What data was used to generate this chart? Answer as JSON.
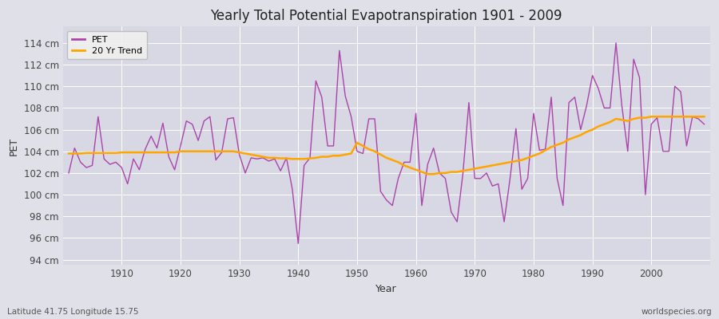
{
  "title": "Yearly Total Potential Evapotranspiration 1901 - 2009",
  "xlabel": "Year",
  "ylabel": "PET",
  "subtitle_left": "Latitude 41.75 Longitude 15.75",
  "subtitle_right": "worldspecies.org",
  "ylim": [
    93.5,
    115.5
  ],
  "yticks": [
    94,
    96,
    98,
    100,
    102,
    104,
    106,
    108,
    110,
    112,
    114
  ],
  "ytick_labels": [
    "94 cm",
    "96 cm",
    "98 cm",
    "100 cm",
    "102 cm",
    "104 cm",
    "106 cm",
    "108 cm",
    "110 cm",
    "112 cm",
    "114 cm"
  ],
  "pet_color": "#AA44AA",
  "trend_color": "#FFA500",
  "bg_color": "#E0E0E8",
  "plot_bg_color": "#D8D8E4",
  "years": [
    1901,
    1902,
    1903,
    1904,
    1905,
    1906,
    1907,
    1908,
    1909,
    1910,
    1911,
    1912,
    1913,
    1914,
    1915,
    1916,
    1917,
    1918,
    1919,
    1920,
    1921,
    1922,
    1923,
    1924,
    1925,
    1926,
    1927,
    1928,
    1929,
    1930,
    1931,
    1932,
    1933,
    1934,
    1935,
    1936,
    1937,
    1938,
    1939,
    1940,
    1941,
    1942,
    1943,
    1944,
    1945,
    1946,
    1947,
    1948,
    1949,
    1950,
    1951,
    1952,
    1953,
    1954,
    1955,
    1956,
    1957,
    1958,
    1959,
    1960,
    1961,
    1962,
    1963,
    1964,
    1965,
    1966,
    1967,
    1968,
    1969,
    1970,
    1971,
    1972,
    1973,
    1974,
    1975,
    1976,
    1977,
    1978,
    1979,
    1980,
    1981,
    1982,
    1983,
    1984,
    1985,
    1986,
    1987,
    1988,
    1989,
    1990,
    1991,
    1992,
    1993,
    1994,
    1995,
    1996,
    1997,
    1998,
    1999,
    2000,
    2001,
    2002,
    2003,
    2004,
    2005,
    2006,
    2007,
    2008,
    2009
  ],
  "pet_values": [
    102.0,
    104.3,
    103.0,
    102.5,
    102.7,
    107.2,
    103.3,
    102.8,
    103.0,
    102.5,
    101.0,
    103.3,
    102.3,
    104.2,
    105.4,
    104.3,
    106.6,
    103.5,
    102.3,
    104.5,
    106.8,
    106.5,
    105.0,
    106.8,
    107.2,
    103.2,
    103.9,
    107.0,
    107.1,
    103.7,
    102.0,
    103.4,
    103.3,
    103.4,
    103.1,
    103.3,
    102.2,
    103.4,
    100.5,
    95.5,
    102.7,
    103.4,
    110.5,
    109.0,
    104.5,
    104.5,
    113.3,
    109.1,
    107.2,
    104.0,
    103.8,
    107.0,
    107.0,
    100.3,
    99.5,
    99.0,
    101.5,
    103.0,
    103.0,
    107.5,
    99.0,
    102.8,
    104.3,
    102.0,
    101.5,
    98.4,
    97.5,
    102.0,
    108.5,
    101.5,
    101.5,
    102.0,
    100.8,
    101.0,
    97.5,
    101.5,
    106.1,
    100.5,
    101.5,
    107.5,
    104.1,
    104.2,
    109.0,
    101.5,
    99.0,
    108.5,
    109.0,
    106.0,
    108.2,
    111.0,
    109.8,
    108.0,
    108.0,
    114.0,
    108.2,
    104.0,
    112.5,
    110.8,
    100.0,
    106.5,
    107.1,
    104.0,
    104.0,
    110.0,
    109.5,
    104.5,
    107.2,
    107.0,
    106.5
  ],
  "trend_values": [
    103.8,
    103.8,
    103.8,
    103.85,
    103.85,
    103.85,
    103.85,
    103.85,
    103.85,
    103.9,
    103.9,
    103.9,
    103.9,
    103.9,
    103.9,
    103.9,
    103.9,
    103.9,
    103.9,
    104.0,
    104.0,
    104.0,
    104.0,
    104.0,
    104.0,
    104.0,
    104.0,
    104.0,
    104.0,
    103.9,
    103.8,
    103.7,
    103.6,
    103.5,
    103.4,
    103.4,
    103.35,
    103.35,
    103.3,
    103.3,
    103.3,
    103.35,
    103.4,
    103.5,
    103.5,
    103.6,
    103.6,
    103.7,
    103.8,
    104.8,
    104.5,
    104.2,
    104.0,
    103.7,
    103.4,
    103.2,
    103.0,
    102.7,
    102.5,
    102.3,
    102.1,
    101.9,
    101.9,
    102.0,
    102.0,
    102.1,
    102.1,
    102.2,
    102.3,
    102.4,
    102.5,
    102.6,
    102.7,
    102.8,
    102.9,
    103.0,
    103.1,
    103.2,
    103.4,
    103.6,
    103.8,
    104.1,
    104.4,
    104.6,
    104.8,
    105.1,
    105.3,
    105.5,
    105.8,
    106.0,
    106.3,
    106.5,
    106.7,
    107.0,
    106.9,
    106.8,
    107.0,
    107.1,
    107.1,
    107.2,
    107.2,
    107.2,
    107.2,
    107.2,
    107.2,
    107.2,
    107.2,
    107.2,
    107.2
  ],
  "xlim": [
    1900,
    2010
  ],
  "xticks": [
    1910,
    1920,
    1930,
    1940,
    1950,
    1960,
    1970,
    1980,
    1990,
    2000
  ]
}
